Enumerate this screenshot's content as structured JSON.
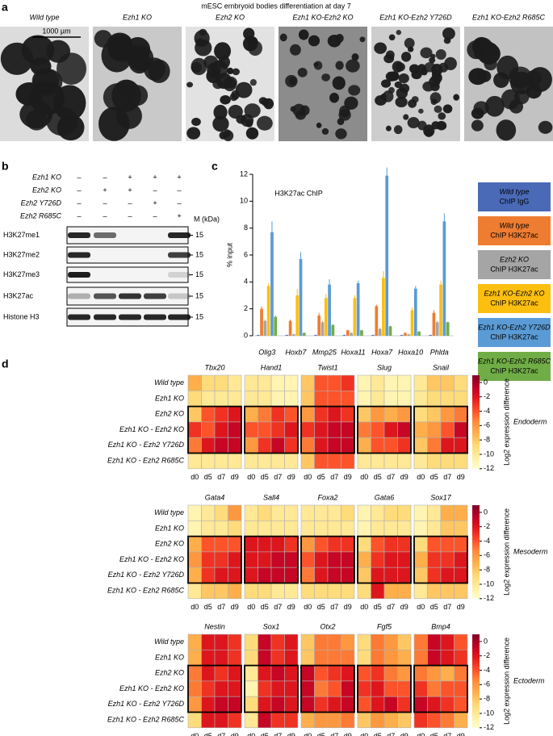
{
  "panel_a": {
    "label": "a",
    "title": "mESC embryoid bodies differentiation at day 7",
    "scale_bar": "1000 µm",
    "images": [
      "Wild type",
      "Ezh1 KO",
      "Ezh2 KO",
      "Ezh1 KO-Ezh2 KO",
      "Ezh1 KO-Ezh2 Y726D",
      "Ezh1 KO-Ezh2 R685C"
    ]
  },
  "panel_b": {
    "label": "b",
    "genotype": [
      {
        "name": "Ezh1 KO",
        "signs": [
          "–",
          "–",
          "+",
          "+",
          "+"
        ]
      },
      {
        "name": "Ezh2 KO",
        "signs": [
          "–",
          "+",
          "+",
          "–",
          "–"
        ]
      },
      {
        "name": "Ezh2 Y726D",
        "signs": [
          "–",
          "–",
          "–",
          "+",
          "–"
        ]
      },
      {
        "name": "Ezh2 R685C",
        "signs": [
          "–",
          "–",
          "–",
          "–",
          "+"
        ]
      }
    ],
    "marker_header": "M (kDa)",
    "blots": [
      {
        "name": "H3K27me1",
        "marker": "15"
      },
      {
        "name": "H3K27me2",
        "marker": "15"
      },
      {
        "name": "H3K27me3",
        "marker": "15"
      },
      {
        "name": "H3K27ac",
        "marker": "15"
      },
      {
        "name": "Histone H3",
        "marker": "15"
      }
    ]
  },
  "chart_data": [
    {
      "type": "bar",
      "panel_label": "c",
      "title": "H3K27ac ChIP",
      "y_label": "% input",
      "categories": [
        "Olig3",
        "Hoxb7",
        "Mmp25",
        "Hoxa11",
        "Hoxa7",
        "Hoxa10",
        "Phlda"
      ],
      "series": [
        {
          "name": "Wild type",
          "antibody": "ChIP IgG",
          "color": "#4a6ab8",
          "values": [
            0.05,
            0.05,
            0.05,
            0.05,
            0.05,
            0.05,
            0.05
          ],
          "errors": [
            0.02,
            0.02,
            0.02,
            0.02,
            0.02,
            0.02,
            0.02
          ]
        },
        {
          "name": "Wild type",
          "antibody": "ChIP H3K27ac",
          "color": "#ee7d31",
          "values": [
            2.0,
            1.1,
            1.5,
            0.4,
            2.2,
            0.2,
            1.7
          ],
          "errors": [
            0.2,
            0.1,
            0.2,
            0.05,
            0.1,
            0.05,
            0.2
          ]
        },
        {
          "name": "Ezh2 KO",
          "antibody": "ChIP H3K27ac",
          "color": "#a5a5a5",
          "values": [
            1.1,
            0.1,
            1.0,
            0.2,
            0.5,
            0.1,
            1.0
          ],
          "errors": [
            0.1,
            0.05,
            0.1,
            0.05,
            0.1,
            0.05,
            0.1
          ]
        },
        {
          "name": "Ezh1 KO-Ezh2 KO",
          "antibody": "ChIP H3K27ac",
          "color": "#fdbf0f",
          "values": [
            3.7,
            3.0,
            2.8,
            2.8,
            4.3,
            1.9,
            3.8
          ],
          "errors": [
            0.2,
            0.5,
            0.3,
            0.2,
            0.5,
            0.2,
            0.3
          ]
        },
        {
          "name": "Ezh1 KO-Ezh2 Y726D",
          "antibody": "ChIP H3K27ac",
          "color": "#5b9bd5",
          "values": [
            7.7,
            5.7,
            3.8,
            3.9,
            11.9,
            3.5,
            8.5
          ],
          "errors": [
            0.8,
            0.5,
            0.4,
            0.2,
            0.6,
            0.2,
            0.6
          ]
        },
        {
          "name": "Ezh1 KO-Ezh2 R685C",
          "antibody": "ChIP H3K27ac",
          "color": "#70ad47",
          "values": [
            1.4,
            0.2,
            0.8,
            0.4,
            0.7,
            0.3,
            1.0
          ],
          "errors": [
            0.1,
            0.05,
            0.05,
            0.05,
            0.05,
            0.05,
            0.05
          ]
        }
      ],
      "ylim": [
        0,
        12
      ],
      "yticks": [
        0,
        2,
        4,
        6,
        8,
        10,
        12
      ]
    },
    {
      "type": "heatmap",
      "panel_label": "d",
      "colorbar_label": "Log2 expression difference",
      "zlim": [
        -12,
        1
      ],
      "zticks": [
        0,
        -2,
        -4,
        -6,
        -8,
        -10,
        -12
      ],
      "colors": [
        "#ffffcc",
        "#ffeda0",
        "#fed976",
        "#feb24c",
        "#fd8d3c",
        "#fc4e2a",
        "#e31a1c",
        "#bd0026",
        "#800026"
      ],
      "rows": [
        "Wild type",
        "Ezh1 KO",
        "Ezh2 KO",
        "Ezh1 KO - Ezh2 KO",
        "Ezh1 KO - Ezh2 Y726D",
        "Ezh1 KO - Ezh2 R685C"
      ],
      "columns": [
        "d0",
        "d5",
        "d7",
        "d9"
      ],
      "groups": [
        {
          "name": "Endoderm",
          "genes": [
            {
              "name": "Tbx20",
              "values": [
                [
                  -7,
                  -9,
                  -9,
                  -10
                ],
                [
                  -9,
                  -10,
                  -10,
                  -10
                ],
                [
                  -8,
                  -4,
                  -3,
                  -2
                ],
                [
                  -3,
                  -4,
                  -2,
                  -1
                ],
                [
                  -5,
                  -2,
                  -1,
                  -1
                ],
                [
                  -10,
                  -10,
                  -10,
                  -10
                ]
              ]
            },
            {
              "name": "Hand1",
              "values": [
                [
                  -10,
                  -10,
                  -11,
                  -11
                ],
                [
                  -10,
                  -10,
                  -11,
                  -11
                ],
                [
                  -7,
                  -5,
                  -3,
                  -4
                ],
                [
                  -4,
                  -4,
                  -3,
                  -2
                ],
                [
                  -6,
                  -3,
                  -1,
                  -3
                ],
                [
                  -10,
                  -10,
                  -10,
                  -10
                ]
              ]
            },
            {
              "name": "Twist1",
              "values": [
                [
                  -8,
                  -4,
                  -4,
                  -3
                ],
                [
                  -8,
                  -4,
                  -4,
                  -4
                ],
                [
                  -6,
                  -3,
                  -2,
                  -3
                ],
                [
                  -3,
                  -2,
                  -1,
                  -1
                ],
                [
                  -5,
                  -2,
                  -1,
                  -1
                ],
                [
                  -8,
                  -4,
                  -4,
                  -4
                ]
              ]
            },
            {
              "name": "Slug",
              "values": [
                [
                  -11,
                  -10,
                  -11,
                  -11
                ],
                [
                  -11,
                  -10,
                  -11,
                  -11
                ],
                [
                  -8,
                  -6,
                  -7,
                  -6
                ],
                [
                  -5,
                  -4,
                  -2,
                  -1
                ],
                [
                  -7,
                  -4,
                  -4,
                  -3
                ],
                [
                  -10,
                  -10,
                  -10,
                  -10
                ]
              ]
            },
            {
              "name": "Snail",
              "values": [
                [
                  -10,
                  -8,
                  -8,
                  -9
                ],
                [
                  -10,
                  -9,
                  -9,
                  -9
                ],
                [
                  -9,
                  -8,
                  -6,
                  -5
                ],
                [
                  -7,
                  -6,
                  -4,
                  -1
                ],
                [
                  -8,
                  -5,
                  -2,
                  -2
                ],
                [
                  -10,
                  -9,
                  -9,
                  -9
                ]
              ]
            }
          ]
        },
        {
          "name": "Mesoderm",
          "genes": [
            {
              "name": "Gata4",
              "values": [
                [
                  -11,
                  -10,
                  -9,
                  -6
                ],
                [
                  -11,
                  -10,
                  -10,
                  -9
                ],
                [
                  -7,
                  -4,
                  -4,
                  -4
                ],
                [
                  -6,
                  -3,
                  -3,
                  -2
                ],
                [
                  -7,
                  -3,
                  -2,
                  -2
                ],
                [
                  -10,
                  -8,
                  -8,
                  -7
                ]
              ]
            },
            {
              "name": "Sall4",
              "values": [
                [
                  -10,
                  -9,
                  -10,
                  -10
                ],
                [
                  -10,
                  -10,
                  -10,
                  -10
                ],
                [
                  -2,
                  -2,
                  -2,
                  -3
                ],
                [
                  -2,
                  -2,
                  -1,
                  -1
                ],
                [
                  -2,
                  -1,
                  -1,
                  -1
                ],
                [
                  -9,
                  -9,
                  -10,
                  -10
                ]
              ]
            },
            {
              "name": "Foxa2",
              "values": [
                [
                  -10,
                  -10,
                  -10,
                  -9
                ],
                [
                  -10,
                  -10,
                  -10,
                  -10
                ],
                [
                  -6,
                  -4,
                  -3,
                  -3
                ],
                [
                  -4,
                  -2,
                  -1,
                  -1
                ],
                [
                  -5,
                  -2,
                  -1,
                  -1
                ],
                [
                  -9,
                  -9,
                  -9,
                  -9
                ]
              ]
            },
            {
              "name": "Gata6",
              "values": [
                [
                  -11,
                  -10,
                  -9,
                  -9
                ],
                [
                  -11,
                  -10,
                  -10,
                  -10
                ],
                [
                  -9,
                  -4,
                  -3,
                  -3
                ],
                [
                  -7,
                  -3,
                  -2,
                  -2
                ],
                [
                  -8,
                  -2,
                  -2,
                  -2
                ],
                [
                  -9,
                  -2,
                  -7,
                  -7
                ]
              ]
            },
            {
              "name": "Sox17",
              "values": [
                [
                  -11,
                  -10,
                  -7,
                  -7
                ],
                [
                  -11,
                  -10,
                  -8,
                  -8
                ],
                [
                  -9,
                  -4,
                  -4,
                  -4
                ],
                [
                  -7,
                  -3,
                  -3,
                  -2
                ],
                [
                  -8,
                  -3,
                  -2,
                  -2
                ],
                [
                  -10,
                  -8,
                  -8,
                  -8
                ]
              ]
            }
          ]
        },
        {
          "name": "Ectoderm",
          "genes": [
            {
              "name": "Nestin",
              "values": [
                [
                  -7,
                  -2,
                  -2,
                  -3
                ],
                [
                  -7,
                  -2,
                  -2,
                  -3
                ],
                [
                  -5,
                  -2,
                  -3,
                  -2
                ],
                [
                  -5,
                  -3,
                  -2,
                  -2
                ],
                [
                  -6,
                  -2,
                  -1,
                  -1
                ],
                [
                  -9,
                  -2,
                  -2,
                  -3
                ]
              ]
            },
            {
              "name": "Sox1",
              "values": [
                [
                  -9,
                  -1,
                  -3,
                  -2
                ],
                [
                  -9,
                  -1,
                  -3,
                  -2
                ],
                [
                  -10,
                  -2,
                  -1,
                  -2
                ],
                [
                  -11,
                  -3,
                  -2,
                  -2
                ],
                [
                  -9,
                  -2,
                  -1,
                  -2
                ],
                [
                  -10,
                  -1,
                  -3,
                  -3
                ]
              ]
            },
            {
              "name": "Otx2",
              "values": [
                [
                  -8,
                  -5,
                  -5,
                  -6
                ],
                [
                  -8,
                  -5,
                  -5,
                  -5
                ],
                [
                  -1,
                  -4,
                  -3,
                  -2
                ],
                [
                  -1,
                  -5,
                  -4,
                  -1
                ],
                [
                  -1,
                  -3,
                  -2,
                  -1
                ],
                [
                  -7,
                  -6,
                  -6,
                  -5
                ]
              ]
            },
            {
              "name": "Fgf5",
              "values": [
                [
                  -9,
                  -5,
                  -6,
                  -8
                ],
                [
                  -9,
                  -5,
                  -6,
                  -7
                ],
                [
                  -4,
                  -3,
                  -5,
                  -6
                ],
                [
                  -3,
                  -2,
                  -4,
                  -4
                ],
                [
                  -4,
                  -2,
                  -1,
                  -3
                ],
                [
                  -8,
                  -6,
                  -7,
                  -8
                ]
              ]
            },
            {
              "name": "Bmp4",
              "values": [
                [
                  -5,
                  -1,
                  -2,
                  -4
                ],
                [
                  -5,
                  -1,
                  -2,
                  -3
                ],
                [
                  -5,
                  -6,
                  -7,
                  -5
                ],
                [
                  -3,
                  -5,
                  -4,
                  -4
                ],
                [
                  -1,
                  -2,
                  -3,
                  -4
                ],
                [
                  -3,
                  -4,
                  -5,
                  -7
                ]
              ]
            }
          ]
        }
      ]
    }
  ]
}
